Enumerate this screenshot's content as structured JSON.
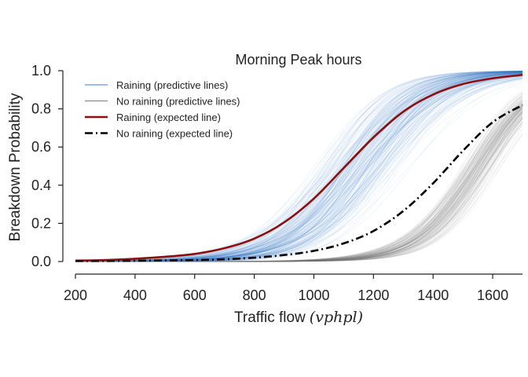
{
  "chart_data": {
    "type": "line",
    "title": "Morning Peak hours",
    "xlabel": "Traffic flow",
    "xlabel_unit": "(vphpl)",
    "ylabel": "Breakdown Probability",
    "xlim": [
      200,
      1700
    ],
    "ylim": [
      0.0,
      1.0
    ],
    "xticks": [
      200,
      400,
      600,
      800,
      1000,
      1200,
      1400,
      1600
    ],
    "yticks": [
      0.0,
      0.2,
      0.4,
      0.6,
      0.8,
      1.0
    ],
    "xtick_labels": [
      "200",
      "400",
      "600",
      "800",
      "1000",
      "1200",
      "1400",
      "1600"
    ],
    "ytick_labels": [
      "0.0",
      "0.2",
      "0.4",
      "0.6",
      "0.8",
      "1.0"
    ],
    "grid": false,
    "legend_position": "top-left",
    "x": [
      200,
      300,
      400,
      500,
      600,
      700,
      800,
      900,
      1000,
      1100,
      1200,
      1300,
      1400,
      1500,
      1600,
      1700
    ],
    "series": [
      {
        "name": "Raining (predictive lines)",
        "style": "thin-band",
        "color": "#3b7dc9",
        "curve_count": 200,
        "midpoint_range": [
          950,
          1350
        ],
        "steepness_range": [
          0.0065,
          0.0105
        ]
      },
      {
        "name": "No raining (predictive lines)",
        "style": "thin-band",
        "color": "#7a7a7a",
        "curve_count": 150,
        "midpoint_range": [
          1470,
          1640
        ],
        "steepness_range": [
          0.0085,
          0.011
        ]
      },
      {
        "name": "Raining (expected line)",
        "style": "solid",
        "color": "#8b0f0f",
        "values": [
          0.005,
          0.008,
          0.015,
          0.025,
          0.04,
          0.07,
          0.12,
          0.205,
          0.33,
          0.49,
          0.65,
          0.785,
          0.875,
          0.93,
          0.96,
          0.978
        ]
      },
      {
        "name": "No raining (expected line)",
        "style": "dashdot",
        "color": "#000000",
        "values": [
          0.003,
          0.003,
          0.004,
          0.006,
          0.008,
          0.012,
          0.02,
          0.034,
          0.056,
          0.095,
          0.16,
          0.265,
          0.41,
          0.58,
          0.73,
          0.82
        ]
      }
    ]
  }
}
